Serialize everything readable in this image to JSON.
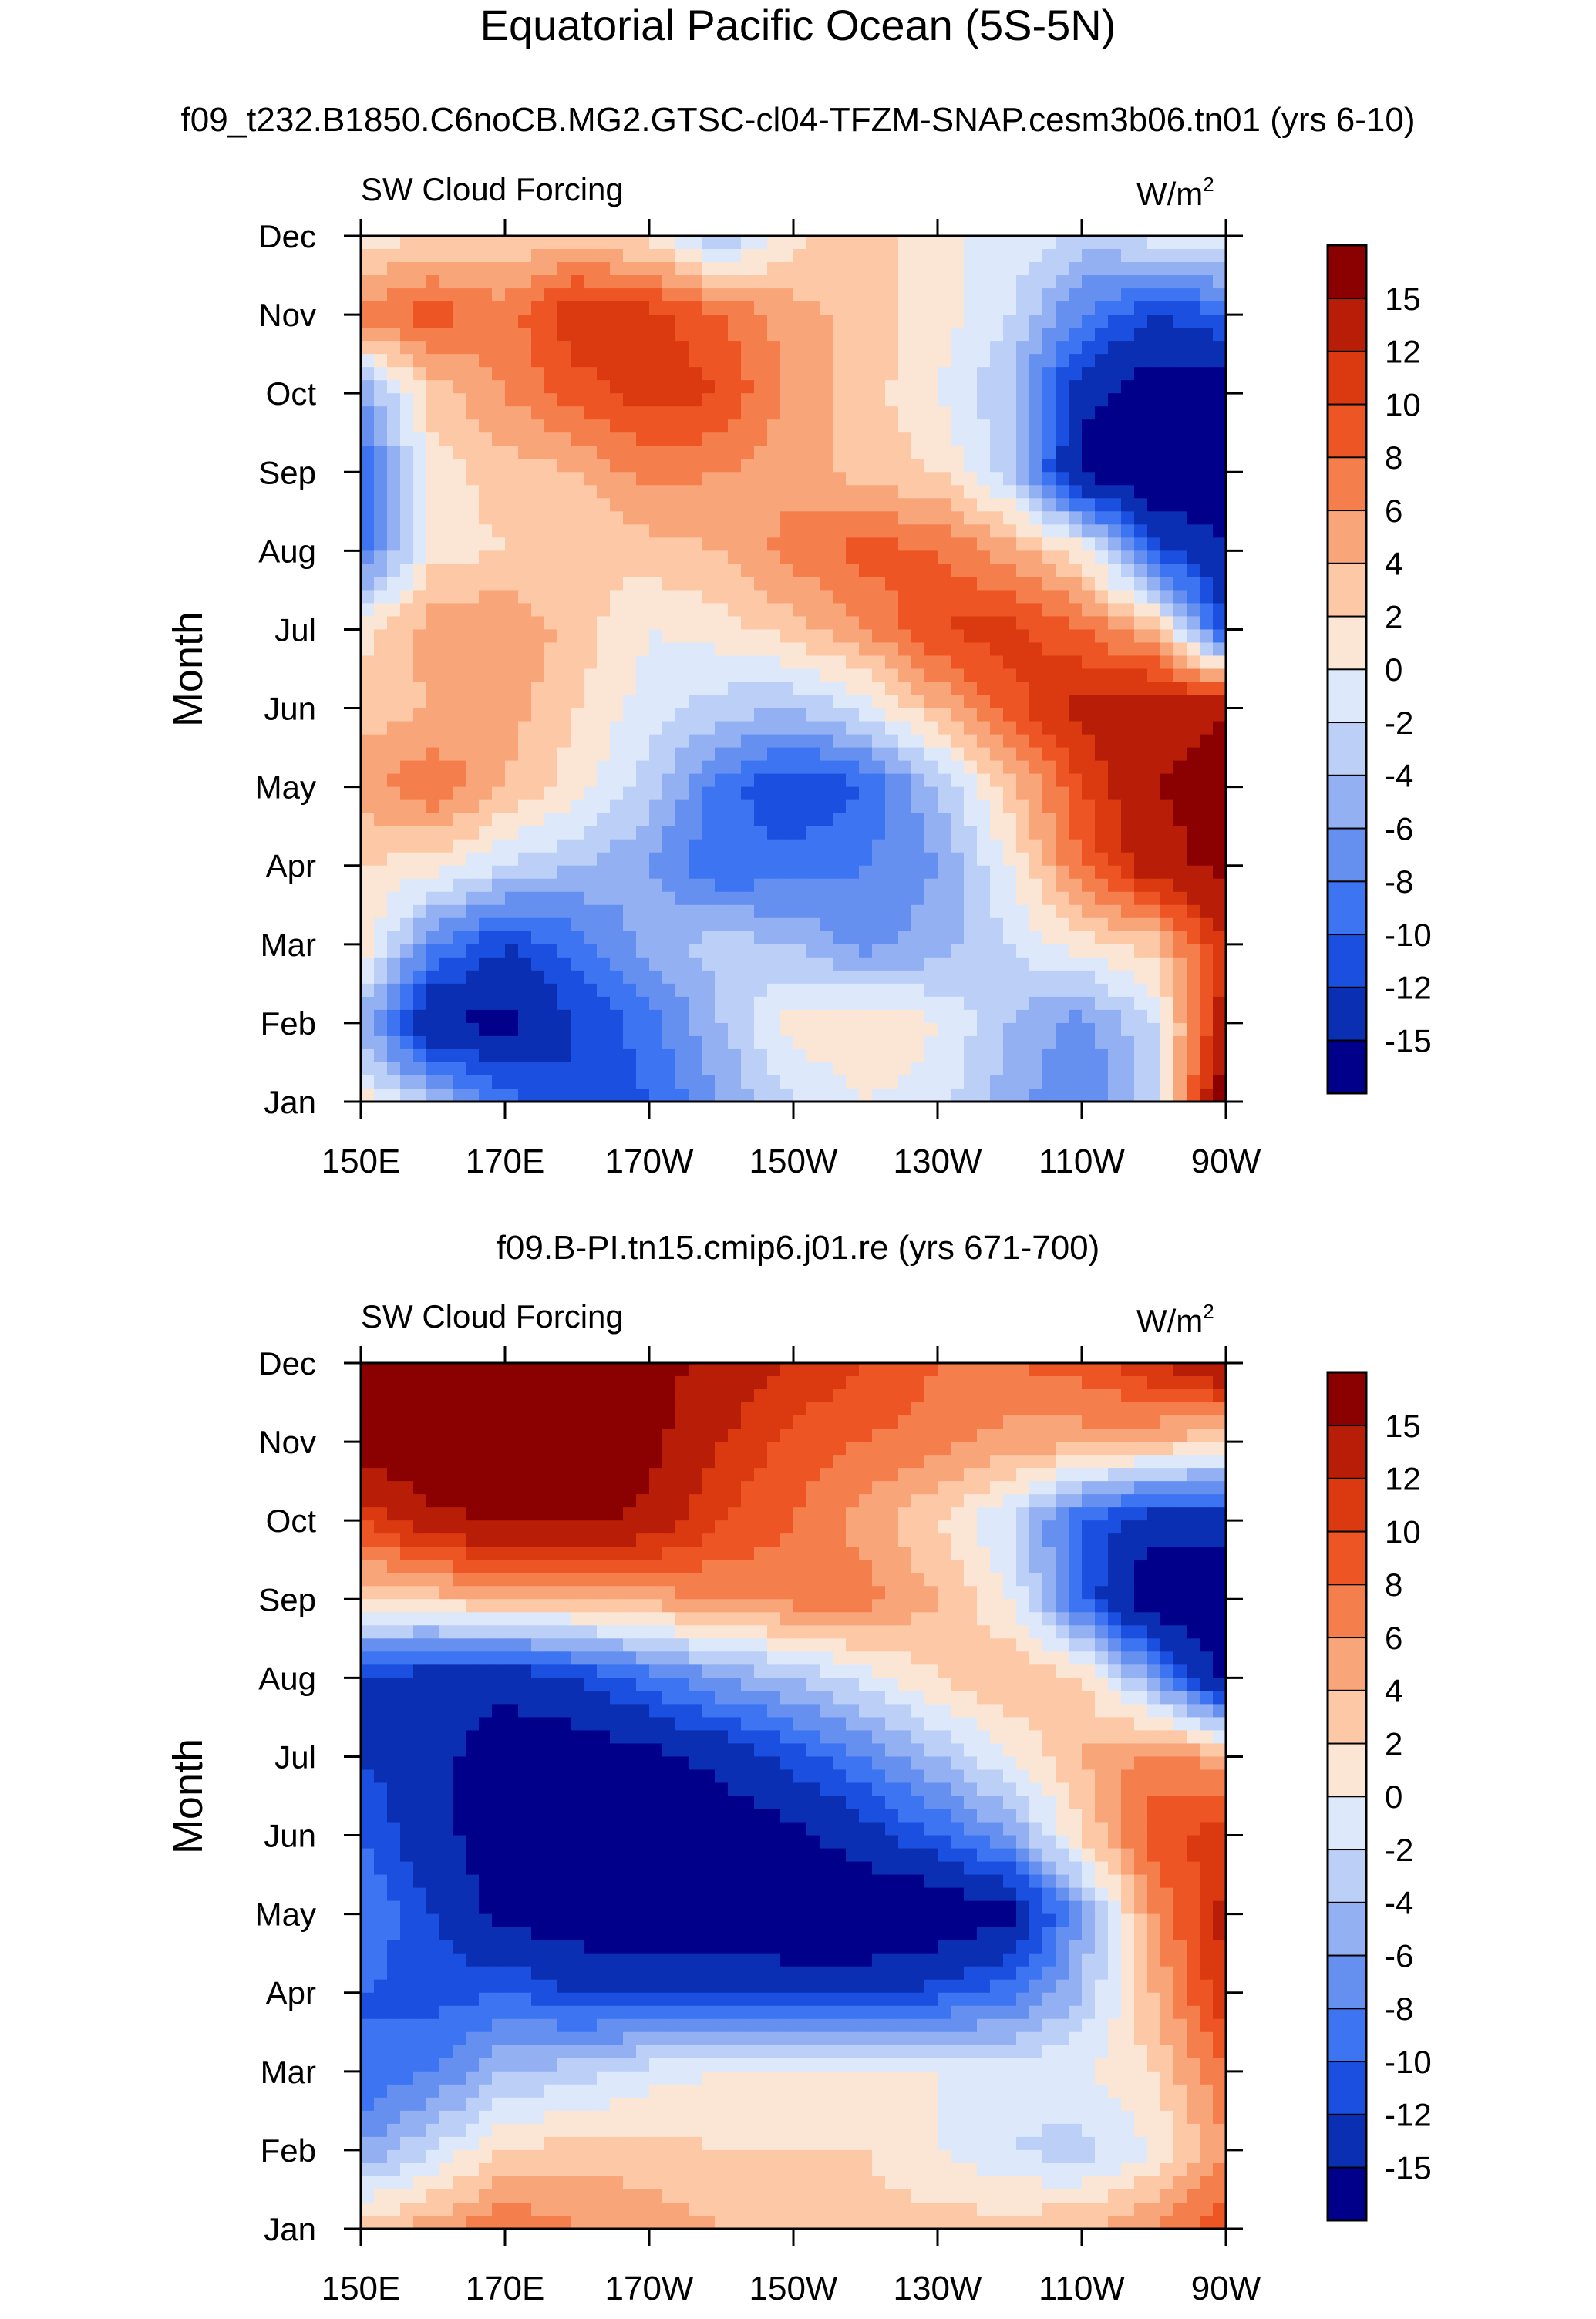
{
  "title": "Equatorial Pacific Ocean (5S-5N)",
  "panels": [
    {
      "subtitle": "f09_t232.B1850.C6noCB.MG2.GTSC-cl04-TFZM-SNAP.cesm3b06.tn01 (yrs 6-10)",
      "left_label": "SW Cloud Forcing",
      "units": "W/m",
      "units_sup": "2",
      "ylabel": "Month"
    },
    {
      "subtitle": "f09.B-PI.tn15.cmip6.j01.re (yrs 671-700)",
      "left_label": "SW Cloud Forcing",
      "units": "W/m",
      "units_sup": "2",
      "ylabel": "Month"
    }
  ],
  "chart_data": [
    {
      "type": "heatmap",
      "title": "f09_t232.B1850.C6noCB.MG2.GTSC-cl04-TFZM-SNAP.cesm3b06.tn01 (yrs 6-10)",
      "variable": "SW Cloud Forcing",
      "units": "W/m2",
      "xlabel": "",
      "ylabel": "Month",
      "x_ticks": [
        "150E",
        "170E",
        "170W",
        "150W",
        "130W",
        "110W",
        "90W"
      ],
      "y_ticks": [
        "Jan",
        "Feb",
        "Mar",
        "Apr",
        "May",
        "Jun",
        "Jul",
        "Aug",
        "Sep",
        "Oct",
        "Nov",
        "Dec"
      ],
      "longitudes_east": [
        150,
        160,
        170,
        180,
        190,
        200,
        210,
        220,
        230,
        240,
        250,
        260,
        270
      ],
      "values": [
        [
          1,
          -4,
          -9,
          -12,
          -10,
          -6,
          -2,
          0,
          -1,
          -5,
          -8,
          -3,
          18
        ],
        [
          -5,
          -15,
          -16,
          -12,
          -9,
          -4,
          1,
          2,
          0,
          -4,
          -7,
          -2,
          14
        ],
        [
          2,
          -8,
          -12,
          -9,
          -5,
          -3,
          -4,
          -7,
          -5,
          -2,
          1,
          3,
          12
        ],
        [
          2,
          1,
          -2,
          -4,
          -6,
          -10,
          -9,
          -8,
          -6,
          0,
          8,
          14,
          16
        ],
        [
          5,
          8,
          4,
          1,
          -3,
          -9,
          -12,
          -10,
          -4,
          3,
          10,
          15,
          16
        ],
        [
          3,
          4,
          5,
          2,
          -1,
          -3,
          -4,
          -1,
          4,
          9,
          13,
          14,
          15
        ],
        [
          1,
          5,
          6,
          3,
          0,
          1,
          3,
          6,
          10,
          11,
          8,
          4,
          -12
        ],
        [
          -9,
          1,
          2,
          2,
          3,
          4,
          7,
          9,
          8,
          5,
          1,
          -11,
          -15
        ],
        [
          -10,
          1,
          3,
          4,
          7,
          6,
          5,
          3,
          2,
          -3,
          -16,
          -18,
          -18
        ],
        [
          -6,
          3,
          6,
          9,
          11,
          10,
          5,
          3,
          0,
          -4,
          -14,
          -17,
          -17
        ],
        [
          7,
          9,
          7,
          12,
          11,
          8,
          5,
          3,
          1,
          -2,
          -8,
          -12,
          -10
        ],
        [
          1,
          2,
          2,
          3,
          1,
          -4,
          1,
          4,
          0,
          0,
          -3,
          -1,
          0
        ]
      ],
      "colorbar": {
        "levels": [
          -15,
          -12,
          -10,
          -8,
          -6,
          -4,
          -2,
          0,
          2,
          4,
          6,
          8,
          10,
          12,
          15
        ],
        "colors": [
          "#00008b",
          "#0a2fb3",
          "#1a4fe0",
          "#3d74f2",
          "#6690f0",
          "#93b0f3",
          "#bcd0f7",
          "#dde9fa",
          "#fbe6d5",
          "#fdc8a6",
          "#f9a57a",
          "#f57e4d",
          "#ed5524",
          "#db3a10",
          "#b81e07",
          "#8b0000"
        ]
      }
    },
    {
      "type": "heatmap",
      "title": "f09.B-PI.tn15.cmip6.j01.re (yrs 671-700)",
      "variable": "SW Cloud Forcing",
      "units": "W/m2",
      "xlabel": "",
      "ylabel": "Month",
      "x_ticks": [
        "150E",
        "170E",
        "170W",
        "150W",
        "130W",
        "110W",
        "90W"
      ],
      "y_ticks": [
        "Jan",
        "Feb",
        "Mar",
        "Apr",
        "May",
        "Jun",
        "Jul",
        "Aug",
        "Sep",
        "Oct",
        "Nov",
        "Dec"
      ],
      "longitudes_east": [
        150,
        160,
        170,
        180,
        190,
        200,
        210,
        220,
        230,
        240,
        250,
        260,
        270
      ],
      "values": [
        [
          3,
          5,
          8,
          6,
          5,
          4,
          4,
          3,
          3,
          3,
          4,
          6,
          10
        ],
        [
          -6,
          -2,
          2,
          3,
          3,
          2,
          2,
          2,
          0,
          -2,
          -3,
          0,
          6
        ],
        [
          -10,
          -8,
          -4,
          -3,
          -1,
          0,
          0,
          1,
          0,
          -1,
          0,
          2,
          8
        ],
        [
          -10,
          -11,
          -10,
          -12,
          -12,
          -12,
          -13,
          -13,
          -11,
          -9,
          -4,
          4,
          12
        ],
        [
          -8,
          -12,
          -16,
          -17,
          -18,
          -18,
          -18,
          -18,
          -18,
          -16,
          -6,
          6,
          13
        ],
        [
          -10,
          -14,
          -17,
          -18,
          -18,
          -17,
          -16,
          -13,
          -10,
          -6,
          2,
          9,
          11
        ],
        [
          -12,
          -14,
          -17,
          -17,
          -16,
          -14,
          -11,
          -8,
          -4,
          0,
          4,
          7,
          5
        ],
        [
          -12,
          -14,
          -14,
          -12,
          -9,
          -6,
          -4,
          -1,
          2,
          4,
          2,
          -6,
          -17
        ],
        [
          2,
          3,
          4,
          4,
          5,
          6,
          7,
          7,
          4,
          0,
          -10,
          -18,
          -18
        ],
        [
          10,
          14,
          16,
          16,
          14,
          10,
          8,
          5,
          2,
          -2,
          -10,
          -14,
          -14
        ],
        [
          17,
          18,
          18,
          18,
          16,
          12,
          9,
          8,
          7,
          5,
          5,
          4,
          2
        ],
        [
          16,
          17,
          17,
          17,
          16,
          14,
          12,
          10,
          8,
          8,
          9,
          12,
          16
        ]
      ],
      "colorbar": {
        "levels": [
          -15,
          -12,
          -10,
          -8,
          -6,
          -4,
          -2,
          0,
          2,
          4,
          6,
          8,
          10,
          12,
          15
        ],
        "colors": [
          "#00008b",
          "#0a2fb3",
          "#1a4fe0",
          "#3d74f2",
          "#6690f0",
          "#93b0f3",
          "#bcd0f7",
          "#dde9fa",
          "#fbe6d5",
          "#fdc8a6",
          "#f9a57a",
          "#f57e4d",
          "#ed5524",
          "#db3a10",
          "#b81e07",
          "#8b0000"
        ]
      }
    }
  ]
}
